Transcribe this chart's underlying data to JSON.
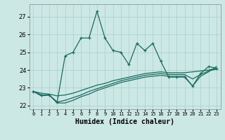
{
  "xlabel": "Humidex (Indice chaleur)",
  "background_color": "#cce8e5",
  "grid_color": "#aad4d0",
  "line_color": "#1a6b5e",
  "x": [
    0,
    1,
    2,
    3,
    4,
    5,
    6,
    7,
    8,
    9,
    10,
    11,
    12,
    13,
    14,
    15,
    16,
    17,
    18,
    19,
    20,
    21,
    22,
    23
  ],
  "y_main": [
    22.8,
    22.6,
    22.6,
    22.2,
    24.8,
    25.0,
    25.8,
    25.8,
    27.3,
    25.8,
    25.1,
    25.0,
    24.3,
    25.5,
    25.1,
    25.5,
    24.5,
    23.6,
    23.6,
    23.6,
    23.1,
    23.8,
    24.2,
    24.1
  ],
  "y_line1": [
    22.8,
    22.7,
    22.65,
    22.55,
    22.6,
    22.7,
    22.85,
    23.0,
    23.15,
    23.25,
    23.4,
    23.5,
    23.6,
    23.7,
    23.8,
    23.85,
    23.9,
    23.85,
    23.85,
    23.85,
    23.9,
    23.95,
    24.0,
    24.1
  ],
  "y_line2": [
    22.8,
    22.6,
    22.6,
    22.2,
    22.3,
    22.45,
    22.6,
    22.8,
    22.95,
    23.1,
    23.25,
    23.4,
    23.5,
    23.6,
    23.7,
    23.75,
    23.8,
    23.75,
    23.75,
    23.75,
    23.5,
    23.75,
    23.95,
    24.05
  ],
  "y_line3": [
    22.8,
    22.55,
    22.6,
    22.15,
    22.15,
    22.3,
    22.5,
    22.65,
    22.85,
    23.0,
    23.15,
    23.3,
    23.4,
    23.5,
    23.6,
    23.65,
    23.7,
    23.65,
    23.65,
    23.65,
    23.1,
    23.65,
    23.9,
    24.2
  ],
  "ylim": [
    21.8,
    27.7
  ],
  "yticks": [
    22,
    23,
    24,
    25,
    26,
    27
  ],
  "xlim": [
    -0.5,
    23.5
  ]
}
